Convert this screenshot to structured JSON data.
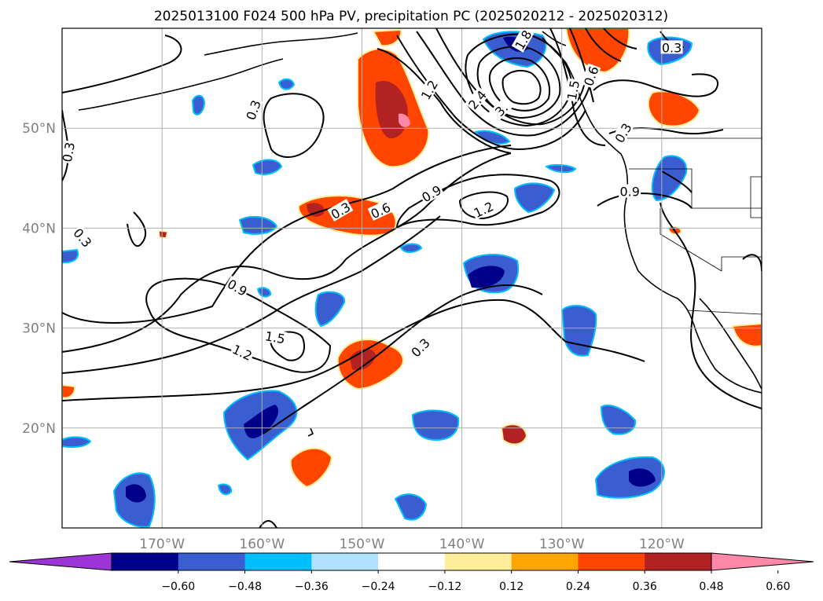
{
  "title": "2025013100 F024 500 hPa PV, precipitation PC (2025020212 - 2025020312)",
  "map": {
    "lon_range": [
      -180,
      -110
    ],
    "lat_range": [
      10,
      60
    ],
    "lon_ticks": [
      {
        "lon": -170,
        "label": "170°W"
      },
      {
        "lon": -160,
        "label": "160°W"
      },
      {
        "lon": -150,
        "label": "150°W"
      },
      {
        "lon": -140,
        "label": "140°W"
      },
      {
        "lon": -130,
        "label": "130°W"
      },
      {
        "lon": -120,
        "label": "120°W"
      }
    ],
    "lat_ticks": [
      {
        "lat": 20,
        "label": "20°N"
      },
      {
        "lat": 30,
        "label": "30°N"
      },
      {
        "lat": 40,
        "label": "40°N"
      },
      {
        "lat": 50,
        "label": "50°N"
      }
    ],
    "contour_labels": [
      {
        "text": "0.3",
        "lon": -160.8,
        "lat": 51.8,
        "rot": -70
      },
      {
        "text": "0.3",
        "lon": -179.3,
        "lat": 47.6,
        "rot": -80
      },
      {
        "text": "0.3",
        "lon": -178.0,
        "lat": 39.0,
        "rot": 50
      },
      {
        "text": "0.3",
        "lon": -152.1,
        "lat": 41.7,
        "rot": -30
      },
      {
        "text": "0.6",
        "lon": -148.1,
        "lat": 41.7,
        "rot": -25
      },
      {
        "text": "0.9",
        "lon": -143.0,
        "lat": 43.4,
        "rot": -30
      },
      {
        "text": "1.2",
        "lon": -137.8,
        "lat": 41.8,
        "rot": -25
      },
      {
        "text": "1.2",
        "lon": -143.2,
        "lat": 53.8,
        "rot": -60
      },
      {
        "text": "2.4",
        "lon": -138.4,
        "lat": 52.8,
        "rot": -50
      },
      {
        "text": "3.",
        "lon": -136.0,
        "lat": 51.8,
        "rot": -45
      },
      {
        "text": "0.6",
        "lon": -127.0,
        "lat": 55.2,
        "rot": -70
      },
      {
        "text": "1.5",
        "lon": -128.8,
        "lat": 53.8,
        "rot": -80
      },
      {
        "text": "0.3",
        "lon": -123.8,
        "lat": 49.5,
        "rot": -60
      },
      {
        "text": "0.3",
        "lon": -119.0,
        "lat": 58.0,
        "rot": 0
      },
      {
        "text": "0.9",
        "lon": -123.2,
        "lat": 43.6,
        "rot": 0
      },
      {
        "text": "0.9",
        "lon": -162.5,
        "lat": 34.0,
        "rot": 30
      },
      {
        "text": "1.5",
        "lon": -158.7,
        "lat": 29.0,
        "rot": 10
      },
      {
        "text": "1.2",
        "lon": -162.0,
        "lat": 27.5,
        "rot": 25
      },
      {
        "text": "0.3",
        "lon": -144.1,
        "lat": 28.0,
        "rot": -45
      },
      {
        "text": "1.8",
        "lon": -133.8,
        "lat": 58.8,
        "rot": -60
      }
    ]
  },
  "colorbar": {
    "colors": [
      "#9d35d6",
      "#00008b",
      "#3a5ed0",
      "#00bfff",
      "#b0e2ff",
      "#ffffff",
      "#ffee99",
      "#ffa500",
      "#ff4500",
      "#b22222",
      "#ff88aa"
    ],
    "tick_labels": [
      "−0.60",
      "−0.48",
      "−0.36",
      "−0.24",
      "−0.12",
      "0.12",
      "0.24",
      "0.36",
      "0.48",
      "0.60"
    ]
  }
}
